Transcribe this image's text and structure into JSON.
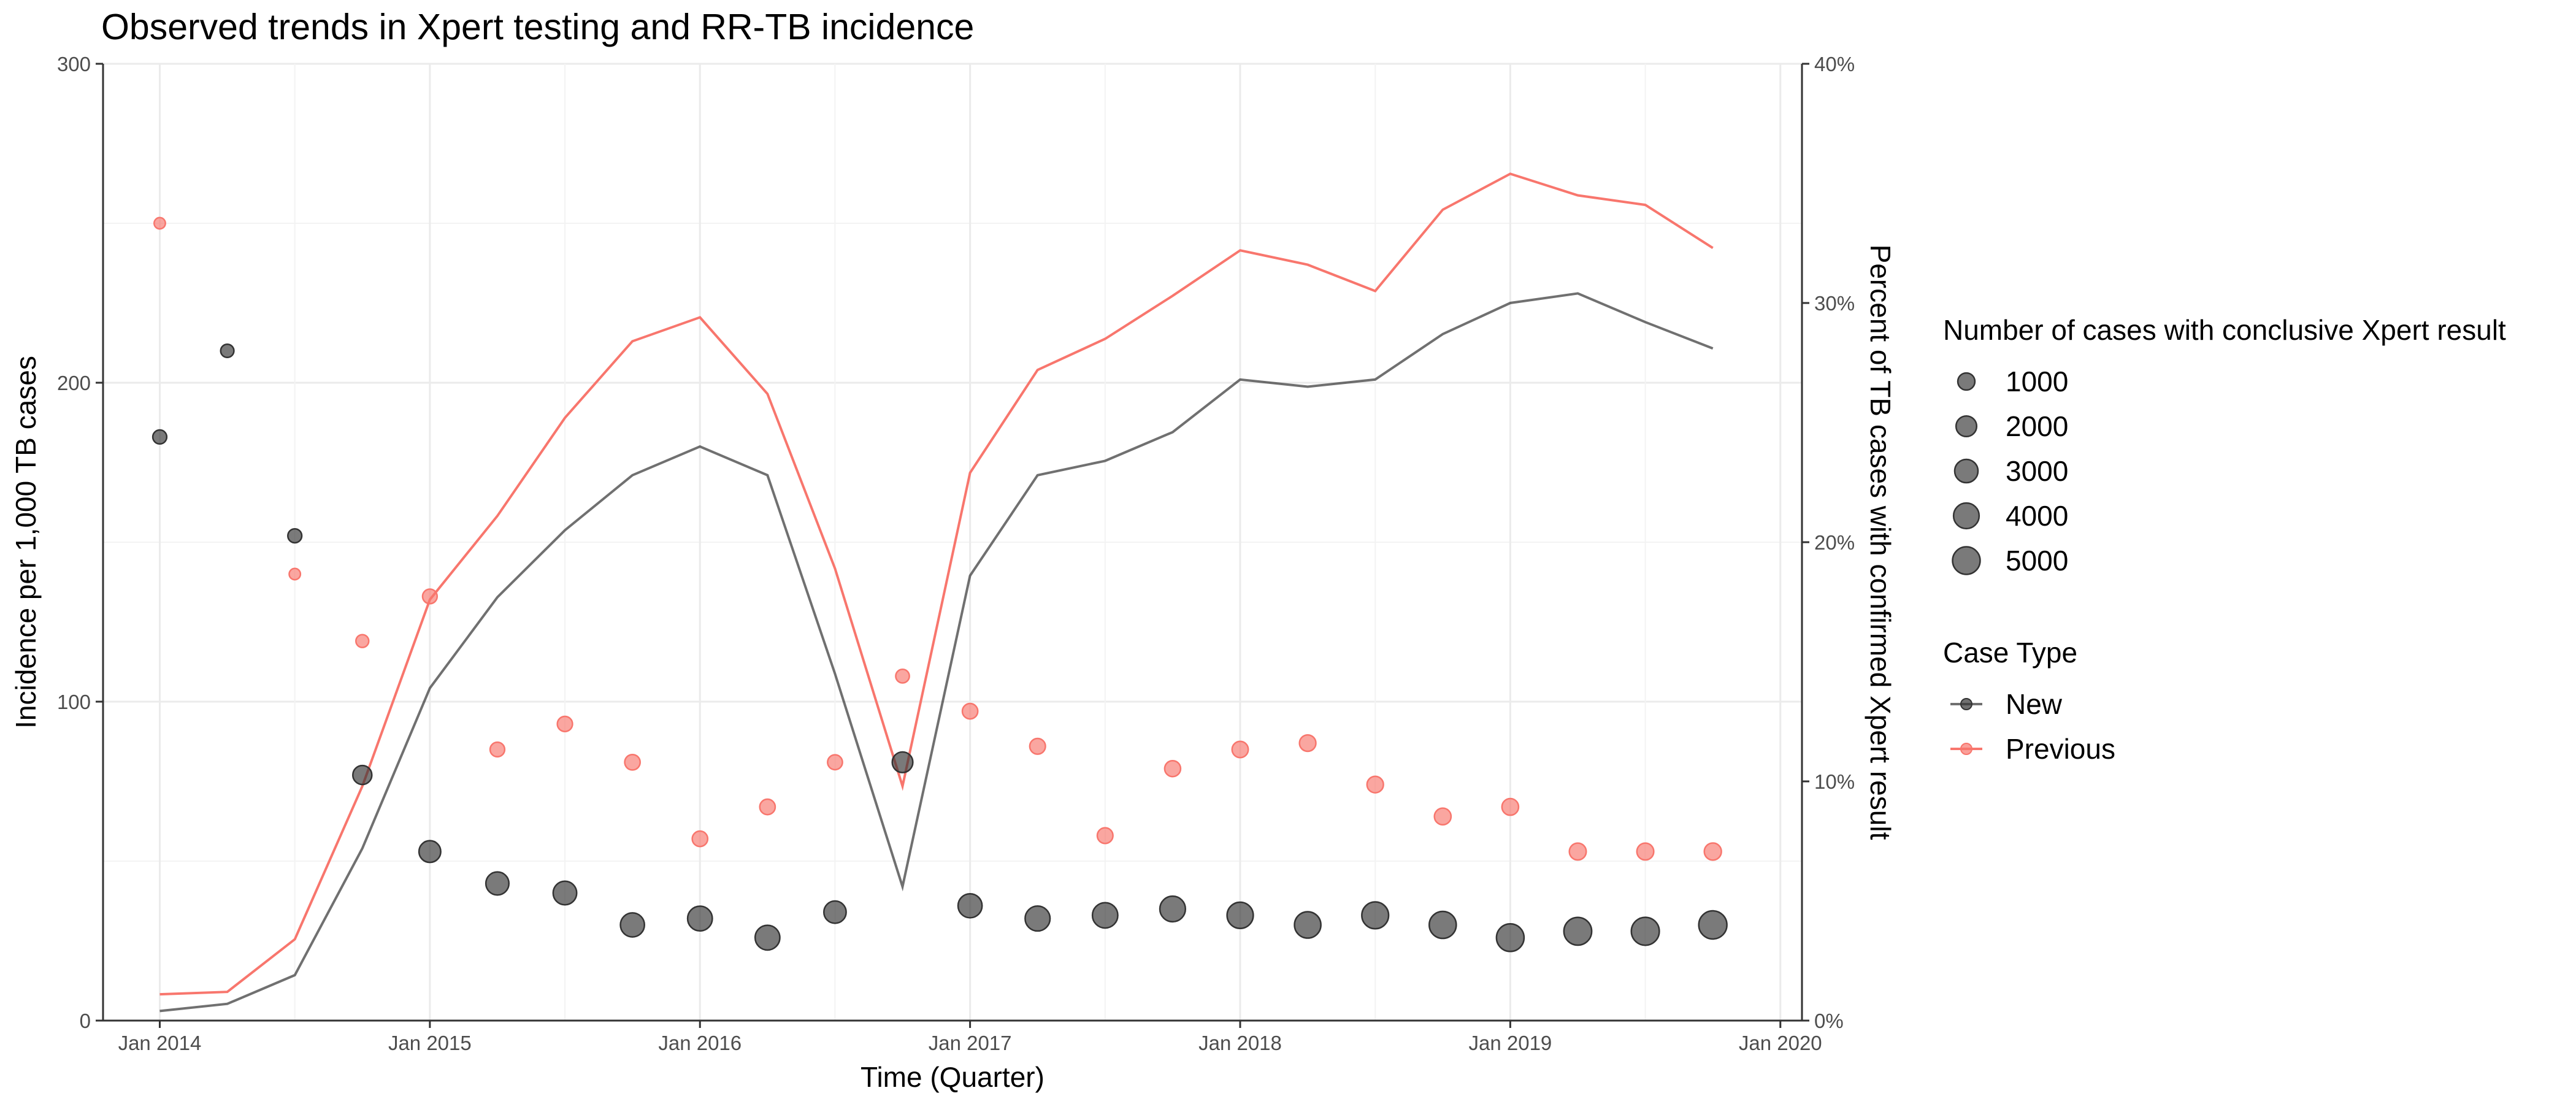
{
  "chart_data": {
    "type": "line",
    "title": "Observed trends in Xpert testing and RR-TB incidence",
    "xlabel": "Time (Quarter)",
    "ylabel": "Incidence per 1,000 TB cases",
    "y2label": "Percent of TB cases with confirmed Xpert result",
    "x_ticks": [
      "Jan 2014",
      "Jan 2015",
      "Jan 2016",
      "Jan 2017",
      "Jan 2018",
      "Jan 2019",
      "Jan 2020"
    ],
    "y_ticks": [
      "0",
      "100",
      "200",
      "300"
    ],
    "y2_ticks": [
      "0%",
      "10%",
      "20%",
      "30%",
      "40%"
    ],
    "ylim": [
      0,
      300
    ],
    "y2lim": [
      0,
      40
    ],
    "grid": true,
    "legend_position": "right",
    "x": [
      "2014-01",
      "2014-04",
      "2014-07",
      "2014-10",
      "2015-01",
      "2015-04",
      "2015-07",
      "2015-10",
      "2016-01",
      "2016-04",
      "2016-07",
      "2016-10",
      "2017-01",
      "2017-04",
      "2017-07",
      "2017-10",
      "2018-01",
      "2018-04",
      "2018-07",
      "2018-10",
      "2019-01",
      "2019-04",
      "2019-07",
      "2019-10"
    ],
    "series": [
      {
        "name": "New",
        "color": "#333333",
        "line_values_percent": [
          0.4,
          0.7,
          1.9,
          7.2,
          13.9,
          17.7,
          20.5,
          22.8,
          24.0,
          22.8,
          14.5,
          5.6,
          18.6,
          22.8,
          23.4,
          24.6,
          26.8,
          26.5,
          26.8,
          28.7,
          30.0,
          30.4,
          29.2,
          28.1
        ],
        "point_values_incidence": [
          183,
          210,
          152,
          77,
          53,
          43,
          40,
          30,
          32,
          26,
          34,
          81,
          36,
          32,
          33,
          35,
          33,
          30,
          33,
          30,
          26,
          28,
          28,
          30
        ],
        "point_sizes_cases": [
          400,
          300,
          400,
          1500,
          2400,
          2900,
          3100,
          3300,
          3600,
          3600,
          2600,
          2000,
          3300,
          3700,
          3900,
          4000,
          4300,
          4400,
          4600,
          4700,
          5000,
          5100,
          5200,
          5300
        ]
      },
      {
        "name": "Previous",
        "color": "#f8766d",
        "line_values_percent": [
          1.1,
          1.2,
          3.4,
          9.8,
          17.6,
          21.1,
          25.2,
          28.4,
          29.4,
          26.2,
          18.9,
          9.8,
          22.9,
          27.2,
          28.5,
          30.3,
          32.2,
          31.6,
          30.5,
          33.9,
          35.4,
          34.5,
          34.1,
          32.3
        ],
        "point_values_incidence": [
          250,
          null,
          140,
          119,
          133,
          85,
          93,
          81,
          57,
          67,
          81,
          108,
          97,
          86,
          58,
          79,
          85,
          87,
          74,
          64,
          67,
          53,
          53,
          53
        ],
        "point_sizes_cases": [
          100,
          null,
          100,
          250,
          500,
          500,
          600,
          650,
          650,
          650,
          550,
          350,
          650,
          700,
          700,
          750,
          800,
          850,
          850,
          900,
          900,
          950,
          950,
          1000
        ]
      }
    ],
    "size_legend": {
      "title": "Number of cases with conclusive Xpert result",
      "labels": [
        "1000",
        "2000",
        "3000",
        "4000",
        "5000"
      ],
      "values": [
        1000,
        2000,
        3000,
        4000,
        5000
      ]
    },
    "color_legend": {
      "title": "Case Type",
      "labels": [
        "New",
        "Previous"
      ]
    }
  }
}
